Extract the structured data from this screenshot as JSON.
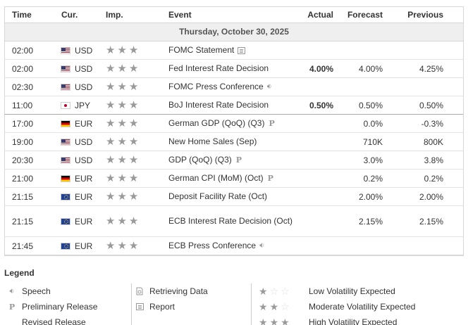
{
  "headers": {
    "time": "Time",
    "cur": "Cur.",
    "imp": "Imp.",
    "event": "Event",
    "actual": "Actual",
    "forecast": "Forecast",
    "previous": "Previous"
  },
  "day_label": "Thursday, October 30, 2025",
  "rows": [
    {
      "time": "02:00",
      "cur": "USD",
      "flag": "usd",
      "imp": 3,
      "event": "FOMC Statement",
      "tag": "report",
      "actual": "",
      "forecast": "",
      "previous": ""
    },
    {
      "time": "02:00",
      "cur": "USD",
      "flag": "usd",
      "imp": 3,
      "event": "Fed Interest Rate Decision",
      "tag": "",
      "actual": "4.00%",
      "forecast": "4.00%",
      "previous": "4.25%"
    },
    {
      "time": "02:30",
      "cur": "USD",
      "flag": "usd",
      "imp": 3,
      "event": "FOMC Press Conference",
      "tag": "speech",
      "actual": "",
      "forecast": "",
      "previous": ""
    },
    {
      "time": "11:00",
      "cur": "JPY",
      "flag": "jpy",
      "imp": 3,
      "event": "BoJ Interest Rate Decision",
      "tag": "",
      "actual": "0.50%",
      "forecast": "0.50%",
      "previous": "0.50%"
    },
    {
      "time": "17:00",
      "cur": "EUR",
      "flag": "de",
      "imp": 3,
      "event": "German GDP (QoQ) (Q3)",
      "tag": "prelim",
      "actual": "",
      "forecast": "0.0%",
      "previous": "-0.3%"
    },
    {
      "time": "19:00",
      "cur": "USD",
      "flag": "usd",
      "imp": 3,
      "event": "New Home Sales (Sep)",
      "tag": "",
      "actual": "",
      "forecast": "710K",
      "previous": "800K"
    },
    {
      "time": "20:30",
      "cur": "USD",
      "flag": "usd",
      "imp": 3,
      "event": "GDP (QoQ) (Q3)",
      "tag": "prelim",
      "actual": "",
      "forecast": "3.0%",
      "previous": "3.8%"
    },
    {
      "time": "21:00",
      "cur": "EUR",
      "flag": "de",
      "imp": 3,
      "event": "German CPI (MoM) (Oct)",
      "tag": "prelim",
      "actual": "",
      "forecast": "0.2%",
      "previous": "0.2%"
    },
    {
      "time": "21:15",
      "cur": "EUR",
      "flag": "eu",
      "imp": 3,
      "event": "Deposit Facility Rate (Oct)",
      "tag": "",
      "actual": "",
      "forecast": "2.00%",
      "previous": "2.00%"
    },
    {
      "time": "21:15",
      "cur": "EUR",
      "flag": "eu",
      "imp": 3,
      "event": "ECB Interest Rate Decision (Oct)",
      "tag": "",
      "actual": "",
      "forecast": "2.15%",
      "previous": "2.15%"
    },
    {
      "time": "21:45",
      "cur": "EUR",
      "flag": "eu",
      "imp": 3,
      "event": "ECB Press Conference",
      "tag": "speech",
      "actual": "",
      "forecast": "",
      "previous": ""
    }
  ],
  "legend": {
    "title": "Legend",
    "speech": "Speech",
    "prelim": "Preliminary Release",
    "revised": "Revised Release",
    "retrieving": "Retrieving Data",
    "report": "Report",
    "low": "Low Volatility Expected",
    "moderate": "Moderate Volatility Expected",
    "high": "High Volatility Expected"
  }
}
